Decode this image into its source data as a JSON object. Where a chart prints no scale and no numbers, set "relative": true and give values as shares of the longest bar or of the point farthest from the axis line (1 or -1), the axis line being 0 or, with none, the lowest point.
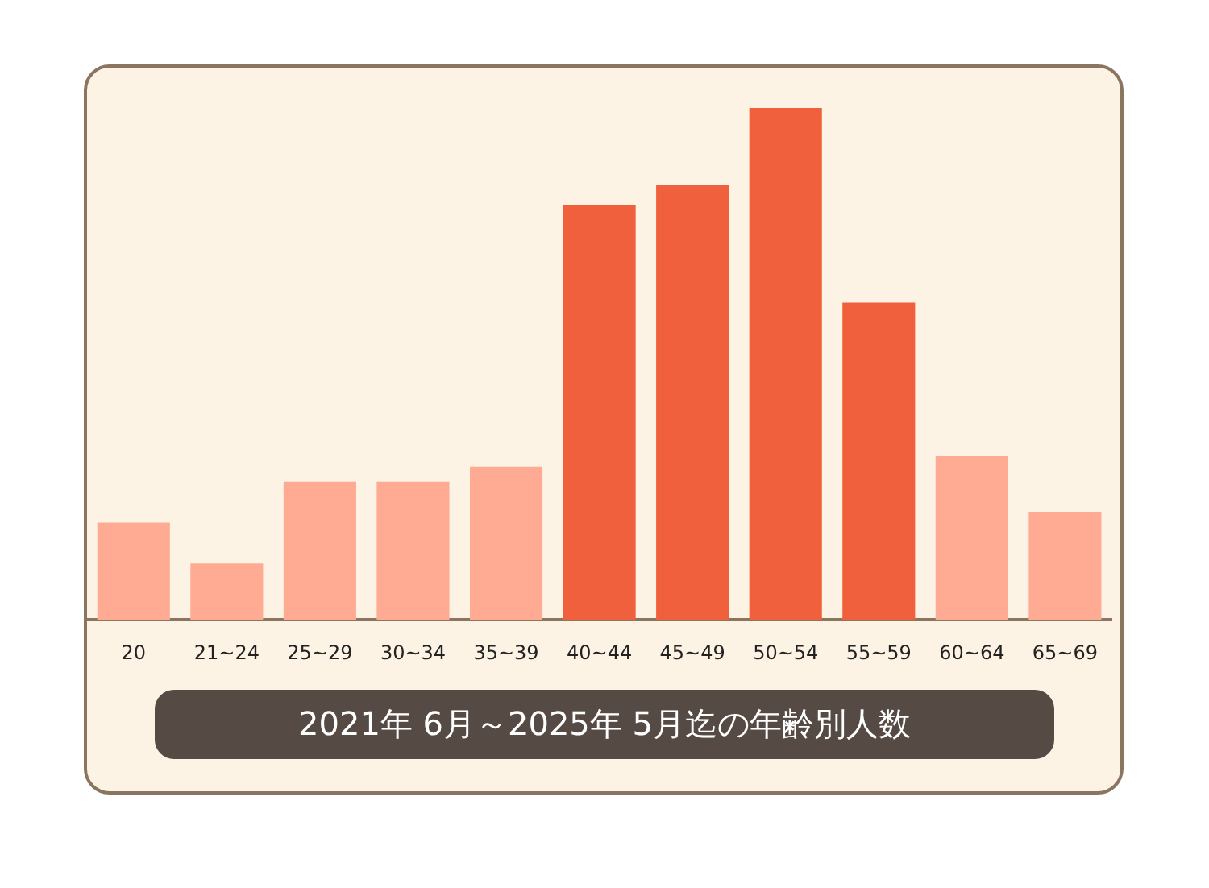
{
  "chart_data": {
    "type": "bar",
    "title": "2021年 6月～2025年 5月迄の年齢別人数",
    "relative": true,
    "categories": [
      "20",
      "21~24",
      "25~29",
      "30~34",
      "35~39",
      "40~44",
      "45~49",
      "50~54",
      "55~59",
      "60~64",
      "65~69"
    ],
    "values": [
      0.19,
      0.11,
      0.27,
      0.27,
      0.3,
      0.81,
      0.85,
      1,
      0.62,
      0.32,
      0.21
    ],
    "colors": [
      "#ffab94",
      "#ffab94",
      "#ffab94",
      "#ffab94",
      "#ffab94",
      "#f0603c",
      "#f0603c",
      "#f0603c",
      "#f0603c",
      "#ffab94",
      "#ffab94"
    ],
    "grid": false,
    "legend": false
  }
}
